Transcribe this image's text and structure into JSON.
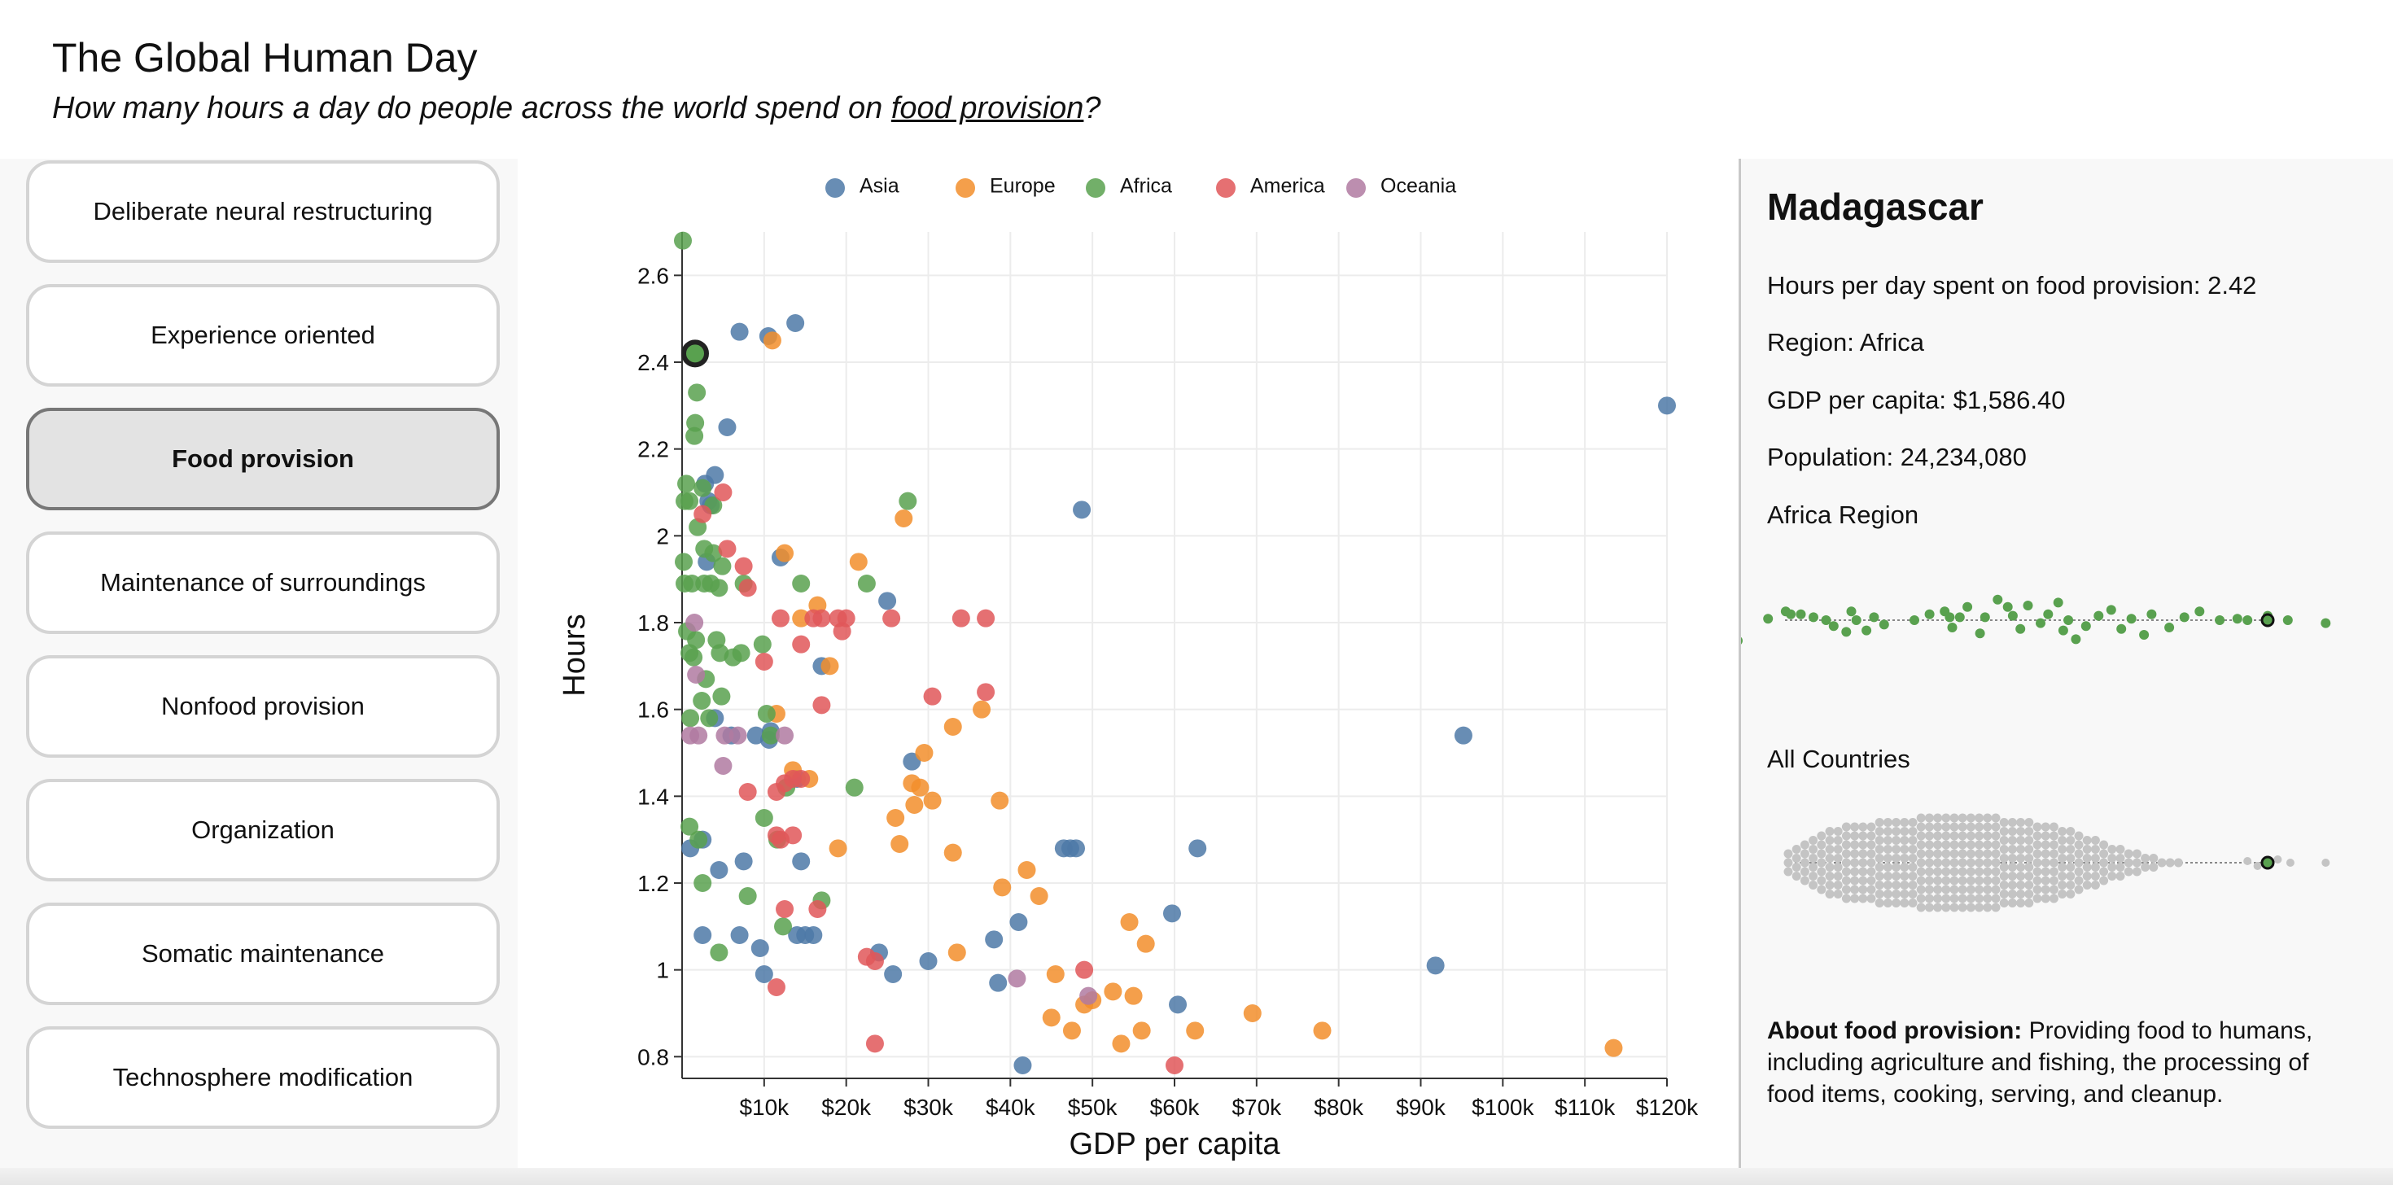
{
  "header": {
    "title": "The Global Human Day",
    "subtitle_prefix": "How many hours a day do people across the world spend on ",
    "subtitle_topic": "food provision",
    "subtitle_suffix": "?"
  },
  "categories": [
    {
      "label": "Deliberate neural restructuring",
      "active": false
    },
    {
      "label": "Experience oriented",
      "active": false
    },
    {
      "label": "Food provision",
      "active": true
    },
    {
      "label": "Maintenance of surroundings",
      "active": false
    },
    {
      "label": "Nonfood provision",
      "active": false
    },
    {
      "label": "Organization",
      "active": false
    },
    {
      "label": "Somatic maintenance",
      "active": false
    },
    {
      "label": "Technosphere modification",
      "active": false
    }
  ],
  "details": {
    "country": "Madagascar",
    "hours_line": "Hours per day spent on food provision: 2.42",
    "region_line": "Region: Africa",
    "gdp_line": "GDP per capita: $1,586.40",
    "population_line": "Population: 24,234,080",
    "region_title": "Africa Region",
    "all_title": "All Countries",
    "about_label": "About food provision:",
    "about_text": " Providing food to humans, including agriculture and fishing, the processing of food items, cooking, serving, and cleanup."
  },
  "colors": {
    "Asia": "#4e79a7",
    "Europe": "#f28e2b",
    "Africa": "#59a14f",
    "America": "#e15759",
    "Oceania": "#b07aa1",
    "gray": "#c4c4c4"
  },
  "chart_data": {
    "type": "scatter",
    "xlabel": "GDP per capita",
    "ylabel": "Hours",
    "xlim": [
      0,
      120000
    ],
    "ylim": [
      0.75,
      2.7
    ],
    "x_ticks": [
      10000,
      20000,
      30000,
      40000,
      50000,
      60000,
      70000,
      80000,
      90000,
      100000,
      110000,
      120000
    ],
    "x_tick_labels": [
      "$10k",
      "$20k",
      "$30k",
      "$40k",
      "$50k",
      "$60k",
      "$70k",
      "$80k",
      "$90k",
      "$100k",
      "$110k",
      "$120k"
    ],
    "y_ticks": [
      0.8,
      1,
      1.2,
      1.4,
      1.6,
      1.8,
      2,
      2.2,
      2.4,
      2.6
    ],
    "y_tick_labels": [
      "0.8",
      "1",
      "1.2",
      "1.4",
      "1.6",
      "1.8",
      "2",
      "2.2",
      "2.4",
      "2.6"
    ],
    "legend": [
      "Asia",
      "Europe",
      "Africa",
      "America",
      "Oceania"
    ],
    "highlight": {
      "region": "Africa",
      "gdp": 1586.4,
      "hours": 2.42
    },
    "series": [
      {
        "name": "Asia",
        "points": [
          [
            7000,
            2.47
          ],
          [
            10500,
            2.46
          ],
          [
            13800,
            2.49
          ],
          [
            5500,
            2.25
          ],
          [
            4000,
            2.14
          ],
          [
            3200,
            2.08
          ],
          [
            2800,
            2.12
          ],
          [
            3500,
            2.07
          ],
          [
            12000,
            1.95
          ],
          [
            25000,
            1.85
          ],
          [
            17000,
            1.7
          ],
          [
            28000,
            1.48
          ],
          [
            3000,
            1.94
          ],
          [
            4000,
            1.58
          ],
          [
            6000,
            1.54
          ],
          [
            9000,
            1.54
          ],
          [
            10600,
            1.53
          ],
          [
            10800,
            1.55
          ],
          [
            14000,
            1.44
          ],
          [
            1000,
            1.28
          ],
          [
            2500,
            1.3
          ],
          [
            7500,
            1.25
          ],
          [
            14500,
            1.25
          ],
          [
            4500,
            1.23
          ],
          [
            2500,
            1.08
          ],
          [
            7000,
            1.08
          ],
          [
            14000,
            1.08
          ],
          [
            15000,
            1.08
          ],
          [
            16000,
            1.08
          ],
          [
            9500,
            1.05
          ],
          [
            24000,
            1.04
          ],
          [
            10000,
            0.99
          ],
          [
            25700,
            0.99
          ],
          [
            30000,
            1.02
          ],
          [
            38500,
            0.97
          ],
          [
            41000,
            1.11
          ],
          [
            38000,
            1.07
          ],
          [
            46500,
            1.28
          ],
          [
            48000,
            1.28
          ],
          [
            47300,
            1.28
          ],
          [
            59700,
            1.13
          ],
          [
            60400,
            0.92
          ],
          [
            62800,
            1.28
          ],
          [
            91800,
            1.01
          ],
          [
            95200,
            1.54
          ],
          [
            48700,
            2.06
          ],
          [
            120000,
            2.3
          ],
          [
            41500,
            0.78
          ]
        ]
      },
      {
        "name": "Europe",
        "points": [
          [
            11000,
            2.45
          ],
          [
            27000,
            2.04
          ],
          [
            12500,
            1.96
          ],
          [
            21500,
            1.94
          ],
          [
            16500,
            1.84
          ],
          [
            14500,
            1.81
          ],
          [
            18000,
            1.7
          ],
          [
            36500,
            1.6
          ],
          [
            33000,
            1.56
          ],
          [
            11500,
            1.59
          ],
          [
            29500,
            1.5
          ],
          [
            13500,
            1.46
          ],
          [
            15500,
            1.44
          ],
          [
            28000,
            1.43
          ],
          [
            29000,
            1.42
          ],
          [
            30500,
            1.39
          ],
          [
            28300,
            1.38
          ],
          [
            38700,
            1.39
          ],
          [
            26000,
            1.35
          ],
          [
            19000,
            1.28
          ],
          [
            26500,
            1.29
          ],
          [
            33000,
            1.27
          ],
          [
            42000,
            1.23
          ],
          [
            39000,
            1.19
          ],
          [
            43500,
            1.17
          ],
          [
            54500,
            1.11
          ],
          [
            56500,
            1.06
          ],
          [
            33500,
            1.04
          ],
          [
            45500,
            0.99
          ],
          [
            50000,
            0.93
          ],
          [
            52500,
            0.95
          ],
          [
            55000,
            0.94
          ],
          [
            45000,
            0.89
          ],
          [
            49000,
            0.92
          ],
          [
            47500,
            0.86
          ],
          [
            53500,
            0.83
          ],
          [
            56000,
            0.86
          ],
          [
            62500,
            0.86
          ],
          [
            69500,
            0.9
          ],
          [
            78000,
            0.86
          ],
          [
            113500,
            0.82
          ]
        ]
      },
      {
        "name": "Africa",
        "points": [
          [
            100,
            2.68
          ],
          [
            1800,
            2.33
          ],
          [
            1600,
            2.26
          ],
          [
            1500,
            2.23
          ],
          [
            500,
            2.12
          ],
          [
            2500,
            2.11
          ],
          [
            3800,
            2.07
          ],
          [
            300,
            2.08
          ],
          [
            900,
            2.08
          ],
          [
            1900,
            2.02
          ],
          [
            2700,
            1.97
          ],
          [
            3800,
            1.96
          ],
          [
            200,
            1.94
          ],
          [
            4900,
            1.93
          ],
          [
            300,
            1.89
          ],
          [
            1200,
            1.89
          ],
          [
            2700,
            1.89
          ],
          [
            3500,
            1.89
          ],
          [
            4500,
            1.88
          ],
          [
            7500,
            1.89
          ],
          [
            14500,
            1.89
          ],
          [
            22500,
            1.89
          ],
          [
            600,
            1.78
          ],
          [
            1700,
            1.76
          ],
          [
            4200,
            1.76
          ],
          [
            900,
            1.73
          ],
          [
            1400,
            1.72
          ],
          [
            4600,
            1.73
          ],
          [
            6200,
            1.72
          ],
          [
            7200,
            1.73
          ],
          [
            9800,
            1.75
          ],
          [
            2900,
            1.67
          ],
          [
            4800,
            1.63
          ],
          [
            2400,
            1.62
          ],
          [
            1000,
            1.58
          ],
          [
            3300,
            1.58
          ],
          [
            10300,
            1.59
          ],
          [
            10800,
            1.54
          ],
          [
            21000,
            1.42
          ],
          [
            12700,
            1.42
          ],
          [
            11600,
            1.3
          ],
          [
            900,
            1.33
          ],
          [
            2000,
            1.3
          ],
          [
            10000,
            1.35
          ],
          [
            2500,
            1.2
          ],
          [
            8000,
            1.17
          ],
          [
            17000,
            1.16
          ],
          [
            12300,
            1.1
          ],
          [
            4500,
            1.04
          ],
          [
            27500,
            2.08
          ]
        ]
      },
      {
        "name": "America",
        "points": [
          [
            5000,
            2.1
          ],
          [
            2500,
            2.05
          ],
          [
            5500,
            1.97
          ],
          [
            7500,
            1.93
          ],
          [
            8000,
            1.88
          ],
          [
            12000,
            1.81
          ],
          [
            16000,
            1.81
          ],
          [
            17000,
            1.81
          ],
          [
            19000,
            1.81
          ],
          [
            20000,
            1.81
          ],
          [
            25500,
            1.81
          ],
          [
            34000,
            1.81
          ],
          [
            37000,
            1.81
          ],
          [
            19500,
            1.78
          ],
          [
            14500,
            1.75
          ],
          [
            10000,
            1.71
          ],
          [
            37000,
            1.64
          ],
          [
            30500,
            1.63
          ],
          [
            17000,
            1.61
          ],
          [
            8000,
            1.41
          ],
          [
            11500,
            1.41
          ],
          [
            12500,
            1.43
          ],
          [
            13500,
            1.44
          ],
          [
            14500,
            1.44
          ],
          [
            11500,
            1.31
          ],
          [
            13500,
            1.31
          ],
          [
            12000,
            1.3
          ],
          [
            16500,
            1.14
          ],
          [
            12500,
            1.14
          ],
          [
            22500,
            1.03
          ],
          [
            23500,
            1.02
          ],
          [
            49000,
            1.0
          ],
          [
            11500,
            0.96
          ],
          [
            23500,
            0.83
          ],
          [
            60000,
            0.78
          ]
        ]
      },
      {
        "name": "Oceania",
        "points": [
          [
            1500,
            1.8
          ],
          [
            1700,
            1.68
          ],
          [
            1000,
            1.54
          ],
          [
            2000,
            1.54
          ],
          [
            5200,
            1.54
          ],
          [
            6800,
            1.54
          ],
          [
            12500,
            1.54
          ],
          [
            5000,
            1.47
          ],
          [
            40800,
            0.98
          ],
          [
            49500,
            0.94
          ]
        ]
      }
    ]
  },
  "swarm_region": {
    "points": [
      [
        -1.4,
        -0.14
      ],
      [
        -1.28,
        0.01
      ],
      [
        -1.21,
        0.06
      ],
      [
        -1.15,
        0.04
      ],
      [
        -1.19,
        0.04
      ],
      [
        -1.1,
        0.02
      ],
      [
        -1.05,
        0.0
      ],
      [
        -1.02,
        -0.04
      ],
      [
        -0.97,
        -0.08
      ],
      [
        -0.95,
        0.06
      ],
      [
        -0.93,
        0.0
      ],
      [
        -0.89,
        -0.07
      ],
      [
        -0.86,
        0.02
      ],
      [
        -0.82,
        -0.03
      ],
      [
        -0.7,
        0.0
      ],
      [
        -0.64,
        0.04
      ],
      [
        -0.58,
        0.06
      ],
      [
        -0.56,
        0.02
      ],
      [
        -0.55,
        -0.05
      ],
      [
        -0.52,
        0.02
      ],
      [
        -0.49,
        0.09
      ],
      [
        -0.44,
        -0.09
      ],
      [
        -0.42,
        0.02
      ],
      [
        -0.37,
        0.14
      ],
      [
        -0.33,
        0.09
      ],
      [
        -0.31,
        0.03
      ],
      [
        -0.28,
        -0.06
      ],
      [
        -0.25,
        0.1
      ],
      [
        -0.2,
        -0.02
      ],
      [
        -0.17,
        0.04
      ],
      [
        -0.13,
        0.12
      ],
      [
        -0.11,
        -0.07
      ],
      [
        -0.09,
        0.0
      ],
      [
        -0.06,
        -0.13
      ],
      [
        -0.02,
        -0.04
      ],
      [
        0.03,
        0.03
      ],
      [
        0.08,
        0.07
      ],
      [
        0.12,
        -0.06
      ],
      [
        0.16,
        0.01
      ],
      [
        0.21,
        -0.1
      ],
      [
        0.24,
        0.04
      ],
      [
        0.31,
        -0.05
      ],
      [
        0.37,
        0.02
      ],
      [
        0.43,
        0.06
      ],
      [
        0.51,
        0.0
      ],
      [
        0.58,
        0.01
      ],
      [
        0.62,
        0.0
      ],
      [
        0.7,
        0.03
      ],
      [
        0.78,
        0.0
      ],
      [
        0.93,
        -0.02
      ]
    ],
    "highlight": [
      0.7,
      0.0
    ]
  },
  "swarm_all": {
    "counts": [
      3,
      4,
      5,
      6,
      7,
      8,
      8,
      9,
      9,
      9,
      9,
      10,
      10,
      10,
      10,
      10,
      11,
      11,
      11,
      11,
      11,
      11,
      11,
      11,
      11,
      11,
      10,
      10,
      10,
      10,
      9,
      9,
      9,
      8,
      8,
      7,
      6,
      6,
      5,
      4,
      4,
      3,
      3,
      2,
      2,
      1,
      1,
      1
    ],
    "highlight": [
      0.7,
      0.0
    ]
  }
}
